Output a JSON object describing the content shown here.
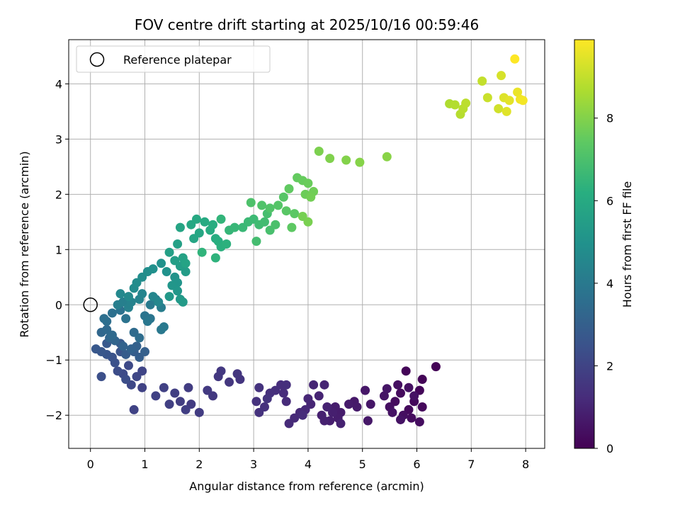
{
  "chart_data": {
    "type": "scatter",
    "title": "FOV centre drift starting at 2025/10/16 00:59:46",
    "xlabel": "Angular distance from reference (arcmin)",
    "ylabel": "Rotation from reference (arcmin)",
    "xlim": [
      -0.4,
      8.35
    ],
    "ylim": [
      -2.6,
      4.8
    ],
    "xticks": [
      "0",
      "1",
      "2",
      "3",
      "4",
      "5",
      "6",
      "7",
      "8"
    ],
    "yticks": [
      "−2",
      "−1",
      "0",
      "1",
      "2",
      "3",
      "4"
    ],
    "grid": true,
    "legend": {
      "placement": "top-left",
      "label": "Reference platepar"
    },
    "reference_point": {
      "x": 0,
      "y": 0
    },
    "colorbar": {
      "label": "Hours from first FF file",
      "colormap": "viridis",
      "range": [
        0,
        9.9
      ],
      "ticks": [
        "0",
        "2",
        "4",
        "6",
        "8"
      ]
    },
    "points": [
      [
        6.35,
        -1.12,
        0.05
      ],
      [
        6.1,
        -1.35,
        0.1
      ],
      [
        5.8,
        -1.2,
        0.12
      ],
      [
        6.05,
        -1.55,
        0.15
      ],
      [
        5.95,
        -1.75,
        0.2
      ],
      [
        6.1,
        -1.85,
        0.22
      ],
      [
        5.85,
        -1.9,
        0.25
      ],
      [
        5.7,
        -1.6,
        0.28
      ],
      [
        5.6,
        -1.75,
        0.3
      ],
      [
        5.9,
        -2.05,
        0.32
      ],
      [
        6.05,
        -2.12,
        0.35
      ],
      [
        5.75,
        -2.0,
        0.38
      ],
      [
        5.5,
        -1.85,
        0.4
      ],
      [
        5.65,
        -1.45,
        0.42
      ],
      [
        5.85,
        -1.5,
        0.45
      ],
      [
        5.95,
        -1.65,
        0.48
      ],
      [
        5.55,
        -1.95,
        0.5
      ],
      [
        5.7,
        -2.08,
        0.52
      ],
      [
        5.4,
        -1.65,
        0.55
      ],
      [
        5.45,
        -1.52,
        0.58
      ],
      [
        5.15,
        -1.8,
        0.6
      ],
      [
        5.05,
        -1.55,
        0.62
      ],
      [
        5.1,
        -2.1,
        0.65
      ],
      [
        4.85,
        -1.75,
        0.68
      ],
      [
        4.9,
        -1.85,
        0.7
      ],
      [
        4.75,
        -1.8,
        0.72
      ],
      [
        4.6,
        -1.95,
        0.75
      ],
      [
        4.5,
        -1.85,
        0.78
      ],
      [
        4.55,
        -2.05,
        0.8
      ],
      [
        4.4,
        -2.1,
        0.82
      ],
      [
        4.45,
        -1.95,
        0.85
      ],
      [
        4.25,
        -2.0,
        0.88
      ],
      [
        4.3,
        -2.1,
        0.9
      ],
      [
        4.6,
        -2.15,
        0.92
      ],
      [
        4.35,
        -1.85,
        0.95
      ],
      [
        4.2,
        -1.65,
        0.98
      ],
      [
        4.1,
        -1.45,
        1.0
      ],
      [
        4.3,
        -1.45,
        1.02
      ],
      [
        4.05,
        -1.8,
        1.05
      ],
      [
        4.0,
        -1.7,
        1.08
      ],
      [
        3.95,
        -1.9,
        1.1
      ],
      [
        3.85,
        -1.95,
        1.12
      ],
      [
        3.75,
        -2.05,
        1.15
      ],
      [
        3.65,
        -2.15,
        1.18
      ],
      [
        3.9,
        -2.0,
        1.2
      ],
      [
        3.6,
        -1.75,
        1.22
      ],
      [
        3.55,
        -1.6,
        1.25
      ],
      [
        3.5,
        -1.45,
        1.28
      ],
      [
        3.6,
        -1.45,
        1.3
      ],
      [
        3.4,
        -1.55,
        1.32
      ],
      [
        3.3,
        -1.6,
        1.35
      ],
      [
        3.2,
        -1.85,
        1.38
      ],
      [
        3.1,
        -1.95,
        1.4
      ],
      [
        3.05,
        -1.75,
        1.42
      ],
      [
        3.1,
        -1.5,
        1.45
      ],
      [
        3.25,
        -1.7,
        1.48
      ],
      [
        2.75,
        -1.35,
        1.52
      ],
      [
        2.7,
        -1.25,
        1.55
      ],
      [
        2.55,
        -1.4,
        1.58
      ],
      [
        2.4,
        -1.2,
        1.6
      ],
      [
        2.35,
        -1.3,
        1.62
      ],
      [
        2.25,
        -1.65,
        1.65
      ],
      [
        2.15,
        -1.55,
        1.68
      ],
      [
        1.85,
        -1.8,
        1.72
      ],
      [
        2.0,
        -1.95,
        1.75
      ],
      [
        1.8,
        -1.5,
        1.78
      ],
      [
        1.65,
        -1.75,
        1.8
      ],
      [
        1.75,
        -1.9,
        1.82
      ],
      [
        1.55,
        -1.6,
        1.85
      ],
      [
        1.45,
        -1.8,
        1.88
      ],
      [
        1.35,
        -1.5,
        1.9
      ],
      [
        1.2,
        -1.65,
        1.92
      ],
      [
        0.95,
        -1.5,
        1.95
      ],
      [
        0.8,
        -1.9,
        1.98
      ],
      [
        0.95,
        -1.2,
        2.05
      ],
      [
        0.85,
        -1.3,
        2.1
      ],
      [
        0.75,
        -1.45,
        2.15
      ],
      [
        0.7,
        -1.1,
        2.2
      ],
      [
        0.6,
        -1.25,
        2.25
      ],
      [
        0.5,
        -1.2,
        2.3
      ],
      [
        0.65,
        -1.35,
        2.35
      ],
      [
        0.2,
        -1.3,
        2.4
      ],
      [
        0.45,
        -1.05,
        2.45
      ],
      [
        0.4,
        -0.95,
        2.5
      ],
      [
        0.55,
        -0.85,
        2.55
      ],
      [
        0.3,
        -0.9,
        2.6
      ],
      [
        0.2,
        -0.85,
        2.65
      ],
      [
        0.1,
        -0.8,
        2.7
      ],
      [
        0.3,
        -0.7,
        2.75
      ],
      [
        0.55,
        -0.7,
        2.8
      ],
      [
        0.65,
        -0.9,
        2.85
      ],
      [
        0.8,
        -0.85,
        2.9
      ],
      [
        0.9,
        -0.95,
        2.95
      ],
      [
        1.0,
        -0.85,
        3.0
      ],
      [
        0.85,
        -0.75,
        3.05
      ],
      [
        0.75,
        -0.8,
        3.1
      ],
      [
        0.6,
        -0.75,
        3.15
      ],
      [
        0.45,
        -0.65,
        3.2
      ],
      [
        0.35,
        -0.6,
        3.25
      ],
      [
        0.2,
        -0.5,
        3.3
      ],
      [
        0.3,
        -0.45,
        3.35
      ],
      [
        0.4,
        -0.55,
        3.4
      ],
      [
        0.8,
        -0.5,
        3.45
      ],
      [
        0.9,
        -0.6,
        3.5
      ],
      [
        0.3,
        -0.3,
        3.55
      ],
      [
        0.25,
        -0.25,
        3.6
      ],
      [
        0.4,
        -0.15,
        3.65
      ],
      [
        0.55,
        -0.1,
        3.7
      ],
      [
        0.65,
        -0.25,
        3.75
      ],
      [
        1.0,
        -0.2,
        3.8
      ],
      [
        1.1,
        -0.25,
        3.85
      ],
      [
        1.05,
        -0.3,
        3.9
      ],
      [
        1.3,
        -0.45,
        3.95
      ],
      [
        1.35,
        -0.4,
        4.0
      ],
      [
        1.1,
        0.0,
        4.05
      ],
      [
        1.2,
        0.1,
        4.1
      ],
      [
        1.3,
        -0.05,
        4.15
      ],
      [
        0.5,
        0.0,
        4.2
      ],
      [
        0.6,
        0.05,
        4.25
      ],
      [
        0.7,
        -0.05,
        4.3
      ],
      [
        0.75,
        0.05,
        4.35
      ],
      [
        0.9,
        0.1,
        4.4
      ],
      [
        0.95,
        0.2,
        4.45
      ],
      [
        1.15,
        0.15,
        4.5
      ],
      [
        1.25,
        0.05,
        4.55
      ],
      [
        0.55,
        0.2,
        4.6
      ],
      [
        0.7,
        0.15,
        4.65
      ],
      [
        0.8,
        0.3,
        4.7
      ],
      [
        0.85,
        0.4,
        4.75
      ],
      [
        0.95,
        0.5,
        4.8
      ],
      [
        1.05,
        0.6,
        4.85
      ],
      [
        1.15,
        0.65,
        4.9
      ],
      [
        1.3,
        0.75,
        4.95
      ],
      [
        1.4,
        0.6,
        5.0
      ],
      [
        1.55,
        0.5,
        5.05
      ],
      [
        1.6,
        0.4,
        5.1
      ],
      [
        1.5,
        0.35,
        5.15
      ],
      [
        1.6,
        0.25,
        5.2
      ],
      [
        1.45,
        0.15,
        5.25
      ],
      [
        1.65,
        0.1,
        5.3
      ],
      [
        1.7,
        0.05,
        5.35
      ],
      [
        1.75,
        0.6,
        5.4
      ],
      [
        1.65,
        0.7,
        5.45
      ],
      [
        1.55,
        0.8,
        5.5
      ],
      [
        1.45,
        0.95,
        5.55
      ],
      [
        1.6,
        1.1,
        5.6
      ],
      [
        1.7,
        0.85,
        5.65
      ],
      [
        1.75,
        0.75,
        5.7
      ],
      [
        1.65,
        1.4,
        5.75
      ],
      [
        1.9,
        1.2,
        5.8
      ],
      [
        2.0,
        1.3,
        5.85
      ],
      [
        1.85,
        1.45,
        5.9
      ],
      [
        1.95,
        1.55,
        5.95
      ],
      [
        2.1,
        1.5,
        6.0
      ],
      [
        2.2,
        1.35,
        6.05
      ],
      [
        2.3,
        1.2,
        6.1
      ],
      [
        2.25,
        1.45,
        6.15
      ],
      [
        2.35,
        1.15,
        6.2
      ],
      [
        2.4,
        1.05,
        6.25
      ],
      [
        2.5,
        1.1,
        6.3
      ],
      [
        2.3,
        0.85,
        6.35
      ],
      [
        2.05,
        0.95,
        6.4
      ],
      [
        2.4,
        1.55,
        6.45
      ],
      [
        2.55,
        1.35,
        6.5
      ],
      [
        2.65,
        1.4,
        6.55
      ],
      [
        2.8,
        1.4,
        6.6
      ],
      [
        2.9,
        1.5,
        6.65
      ],
      [
        3.0,
        1.55,
        6.7
      ],
      [
        3.1,
        1.45,
        6.75
      ],
      [
        3.2,
        1.5,
        6.8
      ],
      [
        3.05,
        1.15,
        6.85
      ],
      [
        3.25,
        1.65,
        6.9
      ],
      [
        3.3,
        1.35,
        6.95
      ],
      [
        3.4,
        1.45,
        7.0
      ],
      [
        2.95,
        1.85,
        7.05
      ],
      [
        3.15,
        1.8,
        7.1
      ],
      [
        3.3,
        1.75,
        7.15
      ],
      [
        3.45,
        1.8,
        7.2
      ],
      [
        3.55,
        1.95,
        7.25
      ],
      [
        3.6,
        1.7,
        7.3
      ],
      [
        3.75,
        1.65,
        7.35
      ],
      [
        3.7,
        1.4,
        7.4
      ],
      [
        3.65,
        2.1,
        7.45
      ],
      [
        3.8,
        2.3,
        7.5
      ],
      [
        3.9,
        2.25,
        7.55
      ],
      [
        4.0,
        2.2,
        7.6
      ],
      [
        3.95,
        2.0,
        7.65
      ],
      [
        4.1,
        2.05,
        7.7
      ],
      [
        4.05,
        1.95,
        7.75
      ],
      [
        3.9,
        1.6,
        7.8
      ],
      [
        4.0,
        1.5,
        7.85
      ],
      [
        4.2,
        2.78,
        7.9
      ],
      [
        4.4,
        2.65,
        7.95
      ],
      [
        4.7,
        2.62,
        8.0
      ],
      [
        4.95,
        2.58,
        8.05
      ],
      [
        5.45,
        2.68,
        8.1
      ],
      [
        6.6,
        3.64,
        8.7
      ],
      [
        6.7,
        3.62,
        8.75
      ],
      [
        6.8,
        3.45,
        8.8
      ],
      [
        6.85,
        3.55,
        8.85
      ],
      [
        6.9,
        3.65,
        8.9
      ],
      [
        7.2,
        4.05,
        9.0
      ],
      [
        7.3,
        3.75,
        9.1
      ],
      [
        7.5,
        3.55,
        9.2
      ],
      [
        7.55,
        4.15,
        9.3
      ],
      [
        7.6,
        3.75,
        9.4
      ],
      [
        7.65,
        3.5,
        9.45
      ],
      [
        7.7,
        3.7,
        9.5
      ],
      [
        7.85,
        3.85,
        9.6
      ],
      [
        7.9,
        3.72,
        9.7
      ],
      [
        7.95,
        3.7,
        9.75
      ],
      [
        7.8,
        4.45,
        9.9
      ]
    ]
  }
}
